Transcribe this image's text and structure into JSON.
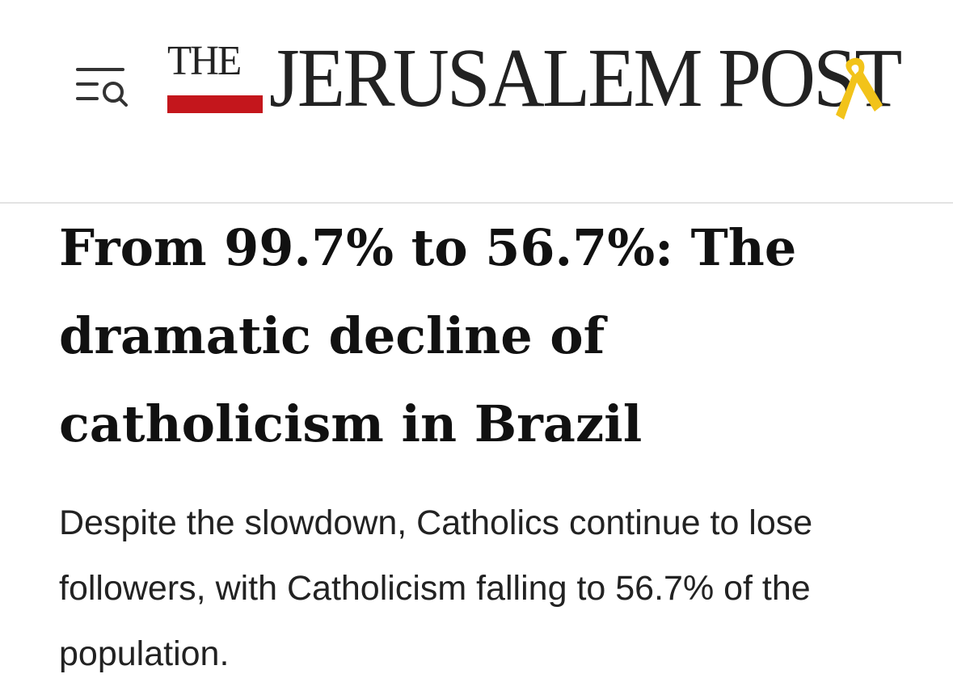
{
  "header": {
    "logo_small": "THE",
    "logo_main": "JERUSALEM POST"
  },
  "article": {
    "title": "From 99.7% to 56.7%: The dramatic decline of catholicism in Brazil",
    "subtitle": "Despite the slowdown, Catholics continue to lose followers, with Catholicism falling to 56.7% of the population."
  }
}
